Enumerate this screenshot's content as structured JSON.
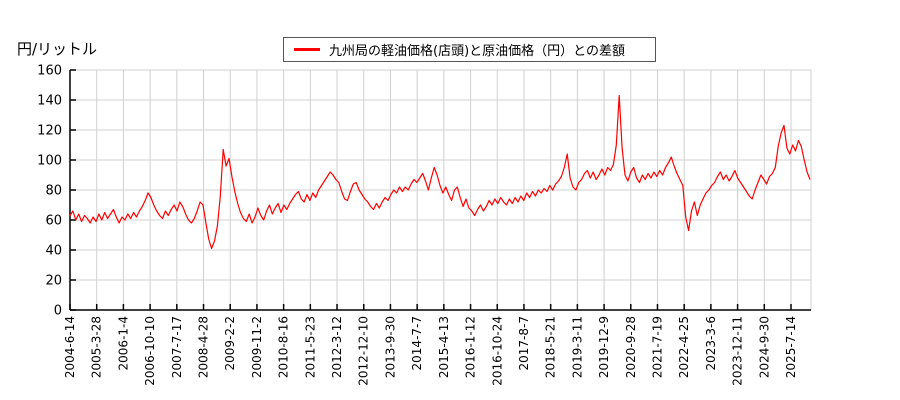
{
  "ylabel": "円/リットル",
  "legend": {
    "label": "九州局の軽油価格(店頭)と原油価格（円）との差額",
    "line_color": "#ff0000"
  },
  "colors": {
    "line": "#ff0000",
    "grid": "#d0d0d0",
    "axis": "#000000",
    "background": "#ffffff",
    "legend_border": "#555555"
  },
  "chart_data": {
    "type": "line",
    "title": "",
    "series": [
      {
        "name": "九州局の軽油価格(店頭)と原油価格（円）との差額",
        "color": "#ff0000",
        "values": [
          63,
          66,
          60,
          64,
          59,
          63,
          61,
          58,
          62,
          59,
          64,
          60,
          65,
          61,
          64,
          67,
          62,
          58,
          62,
          60,
          64,
          61,
          65,
          62,
          66,
          69,
          73,
          78,
          75,
          70,
          66,
          63,
          61,
          66,
          63,
          67,
          70,
          66,
          72,
          69,
          64,
          60,
          58,
          61,
          66,
          72,
          70,
          58,
          47,
          41,
          46,
          56,
          76,
          107,
          96,
          101,
          89,
          79,
          71,
          65,
          61,
          59,
          64,
          58,
          62,
          68,
          63,
          60,
          66,
          70,
          64,
          68,
          71,
          65,
          70,
          67,
          71,
          74,
          77,
          79,
          74,
          72,
          77,
          73,
          78,
          75,
          80,
          83,
          86,
          89,
          92,
          90,
          87,
          85,
          79,
          74,
          73,
          79,
          84,
          85,
          80,
          77,
          74,
          72,
          69,
          67,
          71,
          68,
          72,
          75,
          73,
          77,
          80,
          78,
          82,
          79,
          82,
          80,
          84,
          87,
          85,
          88,
          91,
          86,
          80,
          88,
          95,
          90,
          83,
          78,
          82,
          77,
          73,
          80,
          82,
          75,
          69,
          74,
          68,
          66,
          63,
          67,
          70,
          66,
          69,
          73,
          70,
          74,
          71,
          75,
          72,
          70,
          74,
          71,
          75,
          72,
          76,
          73,
          78,
          75,
          79,
          76,
          80,
          78,
          81,
          79,
          83,
          80,
          84,
          86,
          89,
          95,
          104,
          88,
          82,
          80,
          85,
          87,
          91,
          93,
          88,
          92,
          87,
          90,
          94,
          90,
          95,
          93,
          97,
          110,
          143,
          108,
          90,
          86,
          92,
          95,
          88,
          85,
          90,
          87,
          91,
          88,
          92,
          89,
          93,
          90,
          95,
          98,
          102,
          96,
          91,
          87,
          83,
          62,
          53,
          66,
          72,
          63,
          70,
          74,
          78,
          80,
          83,
          85,
          89,
          92,
          87,
          90,
          86,
          89,
          93,
          88,
          85,
          82,
          79,
          76,
          74,
          80,
          85,
          90,
          87,
          84,
          89,
          91,
          95,
          109,
          118,
          123,
          108,
          104,
          110,
          106,
          113,
          109,
          100,
          92,
          87
        ]
      }
    ],
    "x_tick_labels": [
      "2004-6-14",
      "2005-3-28",
      "2006-1-4",
      "2006-10-10",
      "2007-7-17",
      "2008-4-28",
      "2009-2-2",
      "2009-11-2",
      "2010-8-16",
      "2011-5-23",
      "2012-3-12",
      "2012-12-10",
      "2013-9-30",
      "2014-7-7",
      "2015-4-13",
      "2016-1-12",
      "2016-10-24",
      "2017-8-7",
      "2018-5-21",
      "2019-3-11",
      "2019-12-9",
      "2020-9-28",
      "2021-7-19",
      "2022-4-25",
      "2023-3-6",
      "2023-12-11",
      "2024-9-30",
      "2025-7-14"
    ],
    "y_ticks": [
      0,
      20,
      40,
      60,
      80,
      100,
      120,
      140,
      160
    ],
    "ylim": [
      0,
      160
    ],
    "xlabel": "",
    "ylabel": "円/リットル",
    "grid": "on",
    "legend_position": "top-center"
  }
}
